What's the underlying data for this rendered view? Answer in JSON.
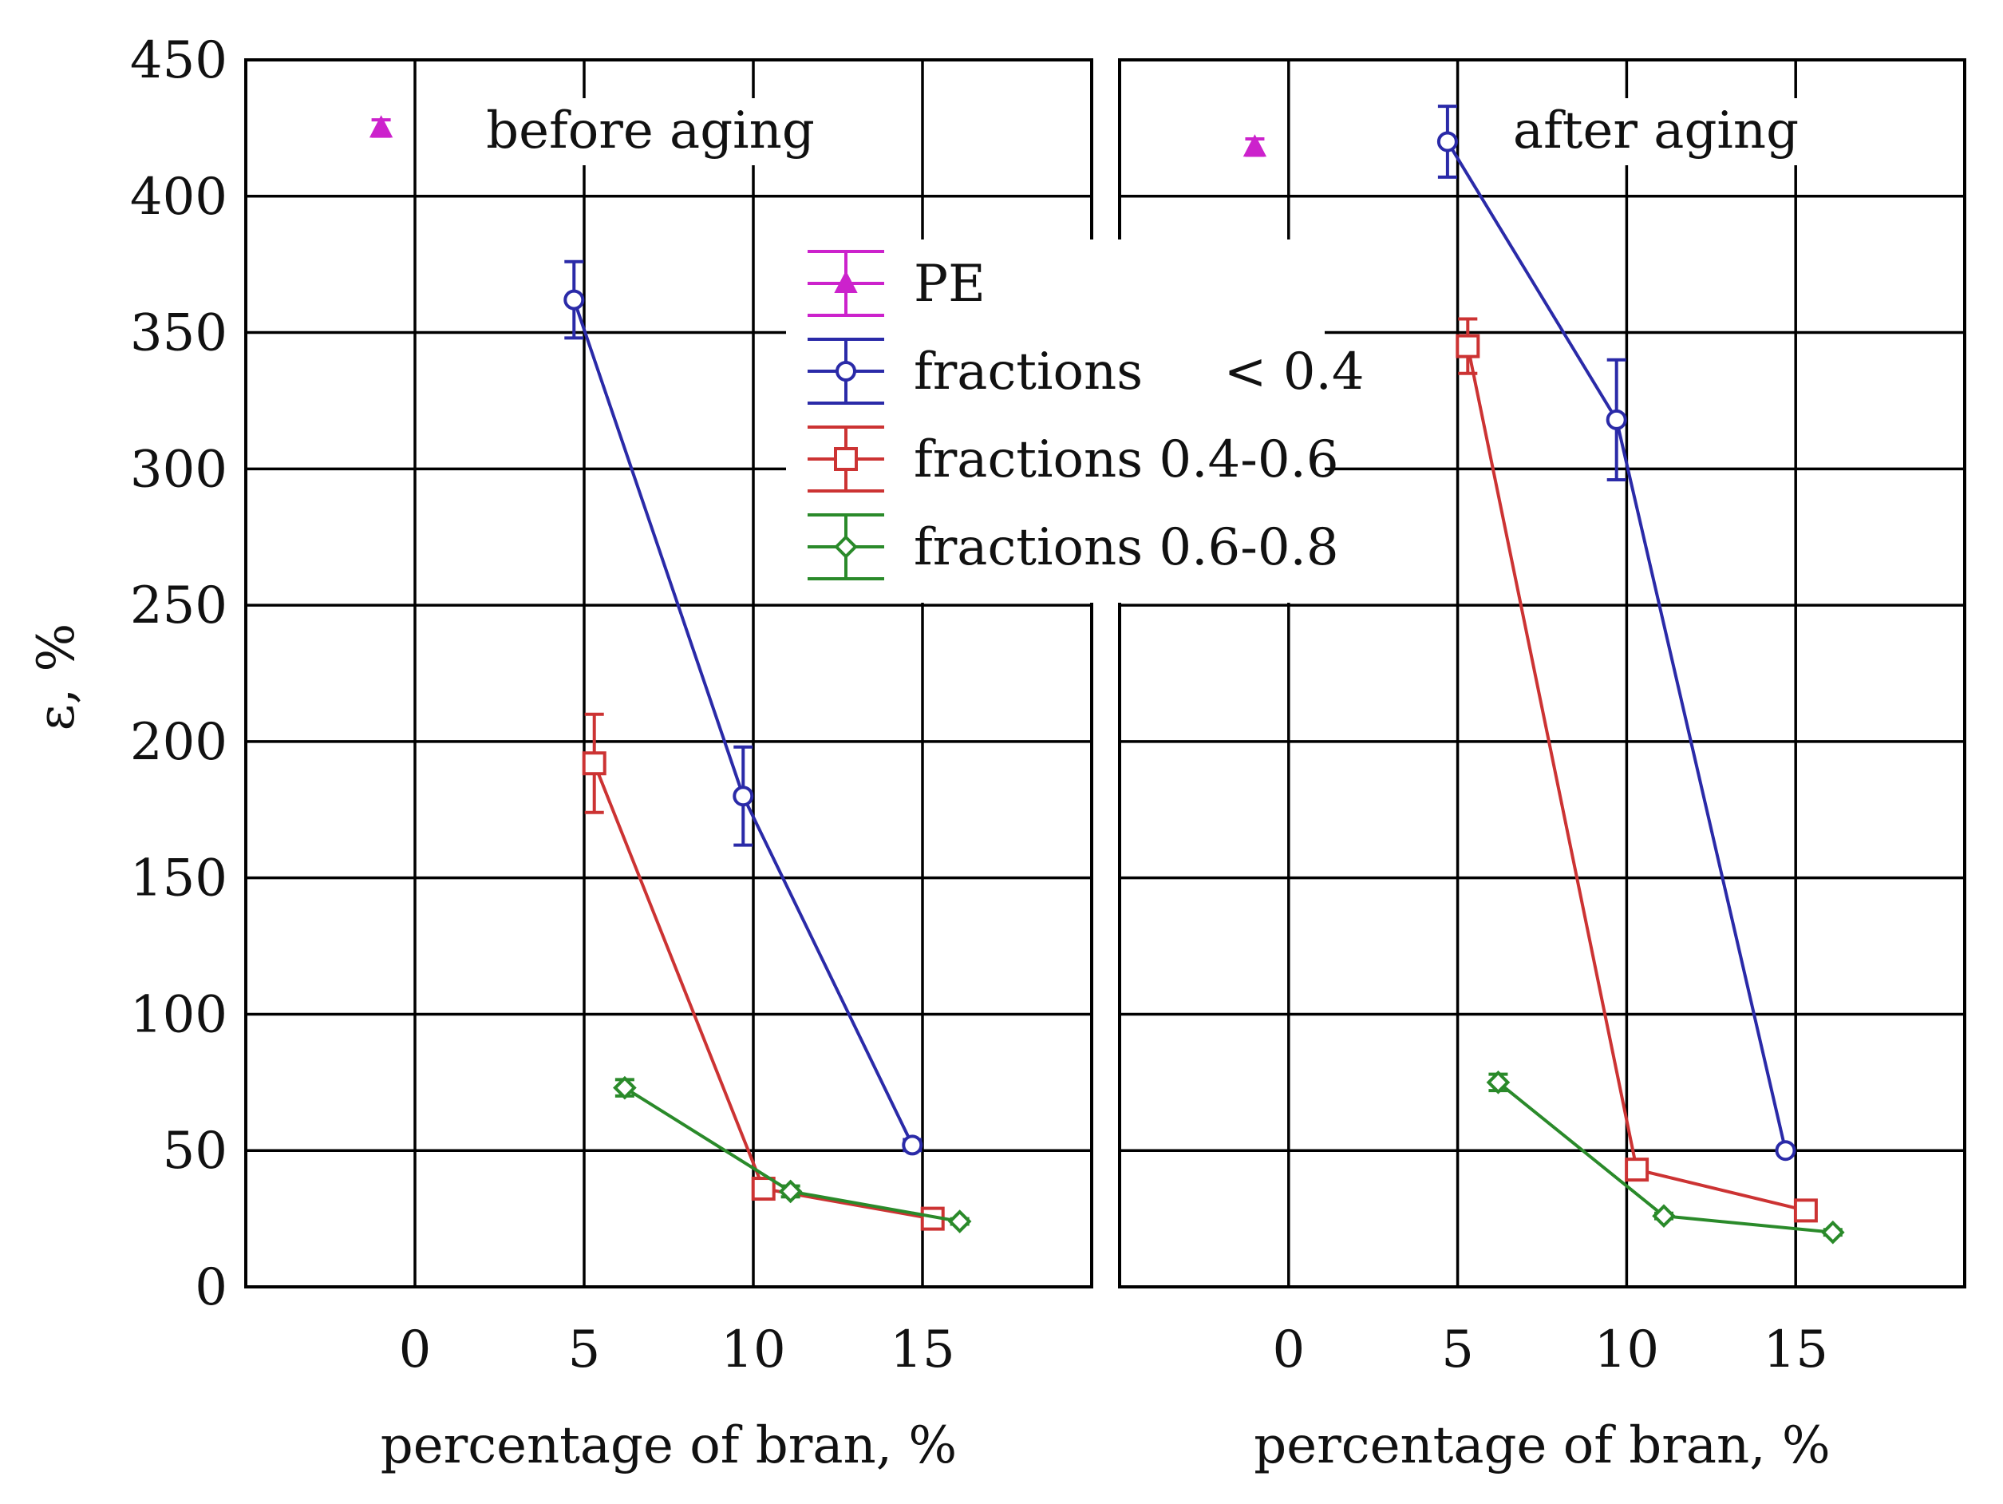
{
  "chart_data": {
    "type": "line",
    "ylabel": "ε, %",
    "ylim": [
      0,
      450
    ],
    "yticks": [
      "0",
      "50",
      "100",
      "150",
      "200",
      "250",
      "300",
      "350",
      "400",
      "450"
    ],
    "xlim": [
      -5,
      20
    ],
    "xticks": [
      "0",
      "5",
      "10",
      "15"
    ],
    "grid": true,
    "legend": {
      "placement": "top-center",
      "entries": [
        {
          "label": "PE",
          "color": "#cc22cc",
          "marker": "triangle"
        },
        {
          "label": "fractions     < 0.4",
          "color": "#2a2aa8",
          "marker": "circle"
        },
        {
          "label": "fractions 0.4-0.6",
          "color": "#cc3333",
          "marker": "square"
        },
        {
          "label": "fractions 0.6-0.8",
          "color": "#2a8a2a",
          "marker": "diamond"
        }
      ]
    },
    "panels": [
      {
        "title": "before aging",
        "xlabel": "percentage of bran, %",
        "series": [
          {
            "name": "PE",
            "color": "#cc22cc",
            "marker": "triangle",
            "x": [
              -1
            ],
            "y": [
              425
            ],
            "err": [
              3
            ]
          },
          {
            "name": "fractions     < 0.4",
            "color": "#2a2aa8",
            "marker": "circle",
            "x": [
              4.7,
              9.7,
              14.7
            ],
            "y": [
              362,
              180,
              52
            ],
            "err": [
              14,
              18,
              2
            ]
          },
          {
            "name": "fractions 0.4-0.6",
            "color": "#cc3333",
            "marker": "square",
            "x": [
              5.3,
              10.3,
              15.3
            ],
            "y": [
              192,
              36,
              25
            ],
            "err": [
              18,
              2,
              2
            ]
          },
          {
            "name": "fractions 0.6-0.8",
            "color": "#2a8a2a",
            "marker": "diamond",
            "x": [
              6.2,
              11.1,
              16.1
            ],
            "y": [
              73,
              35,
              24
            ],
            "err": [
              3,
              2,
              1
            ]
          }
        ]
      },
      {
        "title": "after aging",
        "xlabel": "percentage of bran, %",
        "series": [
          {
            "name": "PE",
            "color": "#cc22cc",
            "marker": "triangle",
            "x": [
              -1
            ],
            "y": [
              418
            ],
            "err": [
              3
            ]
          },
          {
            "name": "fractions     < 0.4",
            "color": "#2a2aa8",
            "marker": "circle",
            "x": [
              4.7,
              9.7,
              14.7
            ],
            "y": [
              420,
              318,
              50
            ],
            "err": [
              13,
              22,
              1
            ]
          },
          {
            "name": "fractions 0.4-0.6",
            "color": "#cc3333",
            "marker": "square",
            "x": [
              5.3,
              10.3,
              15.3
            ],
            "y": [
              345,
              43,
              28
            ],
            "err": [
              10,
              2,
              2
            ]
          },
          {
            "name": "fractions 0.6-0.8",
            "color": "#2a8a2a",
            "marker": "diamond",
            "x": [
              6.2,
              11.1,
              16.1
            ],
            "y": [
              75,
              26,
              20
            ],
            "err": [
              3,
              1,
              1
            ]
          }
        ]
      }
    ]
  }
}
